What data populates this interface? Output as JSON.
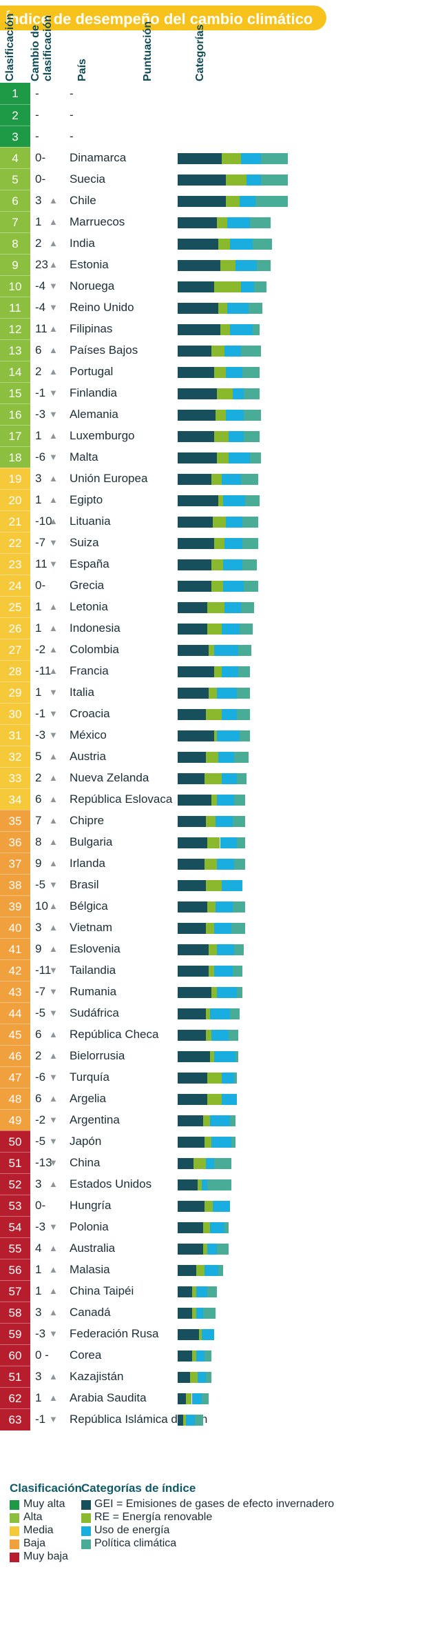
{
  "title": "Índice de desempeño del cambio climático",
  "headers": {
    "rank": "Clasificación",
    "rank_change": "Cambio de clasificación",
    "country": "País",
    "score": "Puntuación",
    "categories": "Categorías"
  },
  "colors": {
    "muy_alta": "#1e9a46",
    "alta": "#8cbf3f",
    "media": "#f6c93b",
    "baja": "#f0a03c",
    "muy_baja": "#b61e2d",
    "ghg": "#174f5d",
    "re": "#8ab92e",
    "eu": "#1aaee0",
    "cp": "#48ac96",
    "title_bg": "#f6c21b"
  },
  "legend": {
    "rank_title": "Clasificación",
    "rank_items": [
      {
        "label": "Muy alta",
        "color": "#1e9a46"
      },
      {
        "label": "Alta",
        "color": "#8cbf3f"
      },
      {
        "label": "Media",
        "color": "#f6c93b"
      },
      {
        "label": "Baja",
        "color": "#f0a03c"
      },
      {
        "label": "Muy baja",
        "color": "#b61e2d"
      }
    ],
    "cat_title": "Categorías de índice",
    "cat_items": [
      {
        "label": "GEI = Emisiones de gases de efecto invernadero",
        "color": "#174f5d"
      },
      {
        "label": "RE = Energía renovable",
        "color": "#8ab92e"
      },
      {
        "label": "Uso de energía",
        "color": "#1aaee0"
      },
      {
        "label": "Política climática",
        "color": "#48ac96"
      }
    ]
  },
  "chart_data": {
    "type": "bar",
    "series_names": [
      "GEI",
      "RE",
      "Uso de energía",
      "Política climática"
    ],
    "rows": [
      {
        "rank": "1",
        "change": "-",
        "arrow": "",
        "country": "-",
        "tier": "muy_alta",
        "values": [
          0,
          0,
          0,
          0
        ]
      },
      {
        "rank": "2",
        "change": "-",
        "arrow": "",
        "country": "-",
        "tier": "muy_alta",
        "values": [
          0,
          0,
          0,
          0
        ]
      },
      {
        "rank": "3",
        "change": "-",
        "arrow": "",
        "country": "-",
        "tier": "muy_alta",
        "values": [
          0,
          0,
          0,
          0
        ]
      },
      {
        "rank": "4",
        "change": "0-",
        "arrow": "",
        "country": "Dinamarca",
        "tier": "alta",
        "values": [
          31,
          14,
          14,
          19
        ]
      },
      {
        "rank": "5",
        "change": "0-",
        "arrow": "",
        "country": "Suecia",
        "tier": "alta",
        "values": [
          34,
          15,
          10,
          19
        ]
      },
      {
        "rank": "6",
        "change": "3",
        "arrow": "up",
        "country": "Chile",
        "tier": "alta",
        "values": [
          34,
          10,
          11,
          23
        ]
      },
      {
        "rank": "7",
        "change": "1",
        "arrow": "up",
        "country": "Marruecos",
        "tier": "alta",
        "values": [
          28,
          7,
          16,
          15
        ]
      },
      {
        "rank": "8",
        "change": "2",
        "arrow": "up",
        "country": "India",
        "tier": "alta",
        "values": [
          29,
          8,
          16,
          14
        ]
      },
      {
        "rank": "9",
        "change": "23",
        "arrow": "up",
        "country": "Estonia",
        "tier": "alta",
        "values": [
          30,
          11,
          15,
          10
        ]
      },
      {
        "rank": "10",
        "change": "-4",
        "arrow": "down",
        "country": "Noruega",
        "tier": "alta",
        "values": [
          26,
          19,
          9,
          9
        ]
      },
      {
        "rank": "11",
        "change": "-4",
        "arrow": "down",
        "country": "Reino Unido",
        "tier": "alta",
        "values": [
          29,
          6,
          15,
          10
        ]
      },
      {
        "rank": "12",
        "change": "11",
        "arrow": "up",
        "country": "Filipinas",
        "tier": "alta",
        "values": [
          30,
          7,
          16,
          5
        ]
      },
      {
        "rank": "13",
        "change": "6",
        "arrow": "up",
        "country": "Países Bajos",
        "tier": "alta",
        "values": [
          24,
          9,
          12,
          14
        ]
      },
      {
        "rank": "14",
        "change": "2",
        "arrow": "up",
        "country": "Portugal",
        "tier": "alta",
        "values": [
          26,
          8,
          12,
          12
        ]
      },
      {
        "rank": "15",
        "change": "-1",
        "arrow": "down",
        "country": "Finlandia",
        "tier": "alta",
        "values": [
          28,
          11,
          8,
          11
        ]
      },
      {
        "rank": "16",
        "change": "-3",
        "arrow": "down",
        "country": "Alemania",
        "tier": "alta",
        "values": [
          27,
          7,
          13,
          12
        ]
      },
      {
        "rank": "17",
        "change": "1",
        "arrow": "up",
        "country": "Luxemburgo",
        "tier": "alta",
        "values": [
          26,
          10,
          11,
          11
        ]
      },
      {
        "rank": "18",
        "change": "-6",
        "arrow": "down",
        "country": "Malta",
        "tier": "alta",
        "values": [
          28,
          8,
          15,
          8
        ]
      },
      {
        "rank": "19",
        "change": "3",
        "arrow": "up",
        "country": "Unión Europea",
        "tier": "media",
        "values": [
          24,
          7,
          14,
          12
        ]
      },
      {
        "rank": "20",
        "change": "1",
        "arrow": "up",
        "country": "Egipto",
        "tier": "media",
        "values": [
          29,
          3,
          16,
          10
        ]
      },
      {
        "rank": "21",
        "change": "-10",
        "arrow": "up",
        "country": "Lituania",
        "tier": "media",
        "values": [
          25,
          9,
          12,
          11
        ]
      },
      {
        "rank": "22",
        "change": "-7",
        "arrow": "down",
        "country": "Suiza",
        "tier": "media",
        "values": [
          26,
          7,
          13,
          11
        ]
      },
      {
        "rank": "23",
        "change": "11",
        "arrow": "down",
        "country": "España",
        "tier": "media",
        "values": [
          24,
          8,
          14,
          10
        ]
      },
      {
        "rank": "24",
        "change": "0-",
        "arrow": "",
        "country": "Grecia",
        "tier": "media",
        "values": [
          24,
          8,
          15,
          10
        ]
      },
      {
        "rank": "25",
        "change": "1",
        "arrow": "up",
        "country": "Letonia",
        "tier": "media",
        "values": [
          21,
          12,
          12,
          9
        ]
      },
      {
        "rank": "26",
        "change": "1",
        "arrow": "up",
        "country": "Indonesia",
        "tier": "media",
        "values": [
          21,
          10,
          13,
          9
        ]
      },
      {
        "rank": "27",
        "change": "-2",
        "arrow": "up",
        "country": "Colombia",
        "tier": "media",
        "values": [
          22,
          4,
          17,
          9
        ]
      },
      {
        "rank": "28",
        "change": "-11",
        "arrow": "up",
        "country": "Francia",
        "tier": "media",
        "values": [
          26,
          5,
          12,
          8
        ]
      },
      {
        "rank": "29",
        "change": "1",
        "arrow": "down",
        "country": "Italia",
        "tier": "media",
        "values": [
          22,
          6,
          14,
          9
        ]
      },
      {
        "rank": "30",
        "change": "-1",
        "arrow": "down",
        "country": "Croacia",
        "tier": "media",
        "values": [
          20,
          11,
          11,
          9
        ]
      },
      {
        "rank": "31",
        "change": "-3",
        "arrow": "down",
        "country": "México",
        "tier": "media",
        "values": [
          26,
          2,
          16,
          7
        ]
      },
      {
        "rank": "32",
        "change": "5",
        "arrow": "up",
        "country": "Austria",
        "tier": "media",
        "values": [
          20,
          9,
          11,
          10
        ]
      },
      {
        "rank": "33",
        "change": "2",
        "arrow": "up",
        "country": "Nueva Zelanda",
        "tier": "media",
        "values": [
          19,
          12,
          11,
          7
        ]
      },
      {
        "rank": "34",
        "change": "6",
        "arrow": "up",
        "country": "República Eslovaca",
        "tier": "media",
        "values": [
          24,
          4,
          12,
          8
        ]
      },
      {
        "rank": "35",
        "change": "7",
        "arrow": "up",
        "country": "Chipre",
        "tier": "baja",
        "values": [
          20,
          7,
          12,
          9
        ]
      },
      {
        "rank": "36",
        "change": "8",
        "arrow": "up",
        "country": "Bulgaria",
        "tier": "baja",
        "values": [
          21,
          9,
          12,
          6
        ]
      },
      {
        "rank": "37",
        "change": "9",
        "arrow": "up",
        "country": "Irlanda",
        "tier": "baja",
        "values": [
          19,
          9,
          12,
          8
        ]
      },
      {
        "rank": "38",
        "change": "-5",
        "arrow": "down",
        "country": "Brasil",
        "tier": "baja",
        "values": [
          20,
          11,
          15,
          0
        ]
      },
      {
        "rank": "39",
        "change": "10",
        "arrow": "up",
        "country": "Bélgica",
        "tier": "baja",
        "values": [
          21,
          6,
          12,
          9
        ]
      },
      {
        "rank": "40",
        "change": "3",
        "arrow": "up",
        "country": "Vietnam",
        "tier": "baja",
        "values": [
          20,
          6,
          12,
          10
        ]
      },
      {
        "rank": "41",
        "change": "9",
        "arrow": "up",
        "country": "Eslovenia",
        "tier": "baja",
        "values": [
          22,
          6,
          12,
          7
        ]
      },
      {
        "rank": "42",
        "change": "-11",
        "arrow": "down",
        "country": "Tailandia",
        "tier": "baja",
        "values": [
          22,
          4,
          13,
          7
        ]
      },
      {
        "rank": "43",
        "change": "-7",
        "arrow": "down",
        "country": "Rumania",
        "tier": "baja",
        "values": [
          24,
          4,
          14,
          4
        ]
      },
      {
        "rank": "44",
        "change": "-5",
        "arrow": "down",
        "country": "Sudáfrica",
        "tier": "baja",
        "values": [
          20,
          3,
          14,
          7
        ]
      },
      {
        "rank": "45",
        "change": "6",
        "arrow": "up",
        "country": "República Checa",
        "tier": "baja",
        "values": [
          20,
          4,
          12,
          7
        ]
      },
      {
        "rank": "46",
        "change": "2",
        "arrow": "up",
        "country": "Bielorrusia",
        "tier": "baja",
        "values": [
          23,
          3,
          15,
          2
        ]
      },
      {
        "rank": "47",
        "change": "-6",
        "arrow": "down",
        "country": "Turquía",
        "tier": "baja",
        "values": [
          21,
          10,
          9,
          2
        ]
      },
      {
        "rank": "48",
        "change": "6",
        "arrow": "up",
        "country": "Argelia",
        "tier": "baja",
        "values": [
          21,
          10,
          11,
          0
        ]
      },
      {
        "rank": "49",
        "change": "-2",
        "arrow": "down",
        "country": "Argentina",
        "tier": "baja",
        "values": [
          18,
          5,
          14,
          4
        ]
      },
      {
        "rank": "50",
        "change": "-5",
        "arrow": "down",
        "country": "Japón",
        "tier": "muy_baja",
        "values": [
          19,
          5,
          14,
          3
        ]
      },
      {
        "rank": "51",
        "change": "-13",
        "arrow": "down",
        "country": "China",
        "tier": "muy_baja",
        "values": [
          11,
          9,
          6,
          12
        ]
      },
      {
        "rank": "52",
        "change": "3",
        "arrow": "up",
        "country": "Estados Unidos",
        "tier": "muy_baja",
        "values": [
          14,
          3,
          4,
          17
        ]
      },
      {
        "rank": "53",
        "change": "0-",
        "arrow": "",
        "country": "Hungría",
        "tier": "muy_baja",
        "values": [
          19,
          6,
          12,
          0
        ]
      },
      {
        "rank": "54",
        "change": "-3",
        "arrow": "down",
        "country": "Polonia",
        "tier": "muy_baja",
        "values": [
          18,
          5,
          10,
          3
        ]
      },
      {
        "rank": "55",
        "change": "4",
        "arrow": "up",
        "country": "Australia",
        "tier": "muy_baja",
        "values": [
          18,
          3,
          7,
          8
        ]
      },
      {
        "rank": "56",
        "change": "1",
        "arrow": "up",
        "country": "Malasia",
        "tier": "muy_baja",
        "values": [
          13,
          6,
          10,
          3
        ]
      },
      {
        "rank": "57",
        "change": "1",
        "arrow": "up",
        "country": "China Taipéi",
        "tier": "muy_baja",
        "values": [
          10,
          3,
          8,
          7
        ]
      },
      {
        "rank": "58",
        "change": "3",
        "arrow": "up",
        "country": "Canadá",
        "tier": "muy_baja",
        "values": [
          10,
          3,
          5,
          9
        ]
      },
      {
        "rank": "59",
        "change": "-3",
        "arrow": "down",
        "country": "Federación Rusa",
        "tier": "muy_baja",
        "values": [
          15,
          2,
          9,
          0
        ]
      },
      {
        "rank": "60",
        "change": "0 -",
        "arrow": "",
        "country": "Corea",
        "tier": "muy_baja",
        "values": [
          10,
          3,
          6,
          5
        ]
      },
      {
        "rank": "51",
        "change": "3",
        "arrow": "up",
        "country": "Kazajistán",
        "tier": "muy_baja",
        "values": [
          9,
          5,
          6,
          4
        ]
      },
      {
        "rank": "62",
        "change": "1",
        "arrow": "up",
        "country": "Arabia Saudita",
        "tier": "muy_baja",
        "values": [
          6,
          4,
          7,
          5
        ]
      },
      {
        "rank": "63",
        "change": "-1",
        "arrow": "down",
        "country": "República Islámica de Irán",
        "tier": "muy_baja",
        "values": [
          4,
          2,
          6,
          6
        ]
      }
    ]
  }
}
